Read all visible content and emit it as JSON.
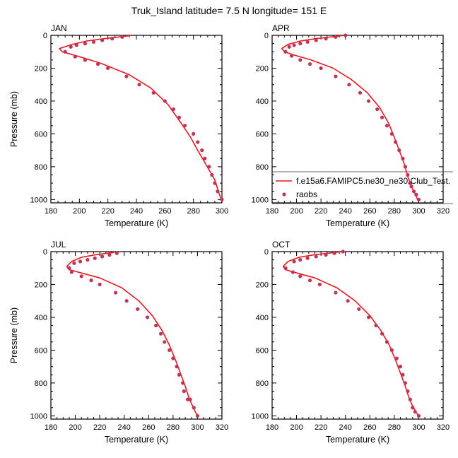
{
  "figure": {
    "title": "Truk_Island  latitude= 7.5 N longitude= 151 E"
  },
  "legend": {
    "model_label": "f.e15a6.FAMIPC5.ne30_ne30.Club_Test.",
    "obs_label": "raobs"
  },
  "colors": {
    "model_line": "#e8181c",
    "obs_marker": "#c0335b",
    "axis": "#000000"
  },
  "chart_data": [
    {
      "type": "line",
      "panel_label": "JAN",
      "xlabel": "Temperature (K)",
      "ylabel": "Pressure (mb)",
      "xlim": [
        180,
        300
      ],
      "ylim": [
        1020,
        0
      ],
      "xticks": [
        180,
        200,
        220,
        240,
        260,
        280,
        300
      ],
      "yticks": [
        0,
        200,
        400,
        600,
        800,
        1000
      ],
      "series": [
        {
          "name": "f.e15a6.FAMIPC5.ne30_ne30.Club_Test.",
          "style": "line",
          "x": [
            237,
            228,
            218,
            205,
            195,
            186,
            188,
            200,
            215,
            235,
            250,
            262,
            271,
            278,
            283,
            287,
            291,
            295,
            297.5,
            299.5
          ],
          "y": [
            0,
            10,
            20,
            35,
            55,
            80,
            100,
            130,
            170,
            240,
            320,
            420,
            530,
            620,
            700,
            760,
            820,
            880,
            950,
            1000
          ]
        },
        {
          "name": "raobs",
          "style": "points",
          "x": [
            230,
            223,
            216,
            210,
            204,
            198,
            194,
            190,
            197,
            204,
            213,
            220,
            233,
            242,
            252,
            260,
            266,
            270,
            274,
            280,
            283,
            286,
            288,
            291,
            293,
            295,
            297,
            300
          ],
          "y": [
            10,
            20,
            30,
            40,
            50,
            60,
            70,
            100,
            130,
            150,
            175,
            200,
            250,
            300,
            350,
            400,
            450,
            500,
            550,
            600,
            650,
            700,
            750,
            800,
            850,
            900,
            950,
            1000
          ]
        }
      ]
    },
    {
      "type": "line",
      "panel_label": "APR",
      "xlabel": "Temperature (K)",
      "ylabel": "",
      "xlim": [
        180,
        320
      ],
      "ylim": [
        1020,
        0
      ],
      "xticks": [
        180,
        200,
        220,
        240,
        260,
        280,
        300,
        320
      ],
      "yticks": [
        0,
        200,
        400,
        600,
        800,
        1000
      ],
      "series": [
        {
          "name": "f.e15a6.FAMIPC5.ne30_ne30.Club_Test.",
          "style": "line",
          "x": [
            239,
            228,
            216,
            203,
            193,
            188,
            190,
            198,
            212,
            230,
            245,
            258,
            268,
            275,
            280,
            284,
            288,
            291,
            294,
            298,
            299
          ],
          "y": [
            0,
            10,
            20,
            35,
            55,
            80,
            100,
            120,
            150,
            200,
            270,
            350,
            440,
            530,
            620,
            700,
            780,
            860,
            920,
            980,
            1000
          ]
        },
        {
          "name": "raobs",
          "style": "points",
          "x": [
            240,
            232,
            224,
            216,
            209,
            203,
            198,
            194,
            191,
            196,
            203,
            211,
            220,
            232,
            243,
            252,
            259,
            266,
            270,
            274,
            278,
            281,
            284,
            287,
            289,
            291,
            293,
            294,
            296,
            298,
            300
          ],
          "y": [
            0,
            10,
            20,
            30,
            40,
            50,
            60,
            70,
            100,
            125,
            150,
            175,
            200,
            250,
            300,
            350,
            400,
            450,
            500,
            550,
            600,
            650,
            700,
            750,
            800,
            850,
            900,
            920,
            950,
            970,
            1000
          ]
        }
      ]
    },
    {
      "type": "line",
      "panel_label": "JUL",
      "xlabel": "Temperature (K)",
      "ylabel": "Pressure (mb)",
      "xlim": [
        180,
        320
      ],
      "ylim": [
        1020,
        0
      ],
      "xticks": [
        180,
        200,
        220,
        240,
        260,
        280,
        300,
        320
      ],
      "yticks": [
        0,
        200,
        400,
        600,
        800,
        1000
      ],
      "series": [
        {
          "name": "f.e15a6.FAMIPC5.ne30_ne30.Club_Test.",
          "style": "line",
          "x": [
            235,
            226,
            216,
            205,
            197,
            193,
            195,
            205,
            220,
            238,
            252,
            263,
            271,
            277,
            282,
            286,
            290,
            293,
            296,
            298.5,
            300
          ],
          "y": [
            0,
            10,
            20,
            35,
            60,
            90,
            110,
            130,
            160,
            220,
            300,
            390,
            480,
            570,
            660,
            740,
            820,
            890,
            940,
            980,
            1000
          ]
        },
        {
          "name": "raobs",
          "style": "points",
          "x": [
            234,
            228,
            222,
            216,
            210,
            204,
            199,
            195,
            197,
            205,
            213,
            220,
            233,
            242,
            251,
            259,
            266,
            270,
            273,
            277,
            280,
            283,
            285,
            288,
            289,
            292,
            294,
            297,
            300
          ],
          "y": [
            10,
            20,
            30,
            40,
            50,
            60,
            70,
            100,
            125,
            150,
            175,
            200,
            250,
            300,
            350,
            400,
            450,
            500,
            550,
            600,
            650,
            700,
            750,
            800,
            850,
            900,
            900,
            950,
            1000
          ]
        }
      ]
    },
    {
      "type": "line",
      "panel_label": "OCT",
      "xlabel": "Temperature (K)",
      "ylabel": "",
      "xlim": [
        180,
        320
      ],
      "ylim": [
        1020,
        0
      ],
      "xticks": [
        180,
        200,
        220,
        240,
        260,
        280,
        300,
        320
      ],
      "yticks": [
        0,
        200,
        400,
        600,
        800,
        1000
      ],
      "series": [
        {
          "name": "f.e15a6.FAMIPC5.ne30_ne30.Club_Test.",
          "style": "line",
          "x": [
            237,
            226,
            214,
            202,
            193,
            189,
            191,
            200,
            215,
            233,
            248,
            260,
            269,
            276,
            281,
            285,
            289,
            292,
            295,
            298,
            300
          ],
          "y": [
            0,
            10,
            20,
            35,
            60,
            90,
            110,
            130,
            160,
            220,
            300,
            390,
            480,
            570,
            660,
            740,
            820,
            890,
            940,
            980,
            1000
          ]
        },
        {
          "name": "raobs",
          "style": "points",
          "x": [
            238,
            231,
            224,
            216,
            209,
            203,
            198,
            191,
            197,
            203,
            211,
            219,
            232,
            242,
            251,
            259,
            265,
            270,
            274,
            278,
            282,
            285,
            287,
            289,
            291,
            293,
            295,
            297,
            300
          ],
          "y": [
            0,
            10,
            20,
            30,
            40,
            50,
            60,
            100,
            125,
            150,
            175,
            200,
            250,
            300,
            350,
            400,
            450,
            500,
            550,
            600,
            650,
            700,
            750,
            800,
            850,
            900,
            950,
            975,
            1000
          ]
        }
      ]
    }
  ]
}
